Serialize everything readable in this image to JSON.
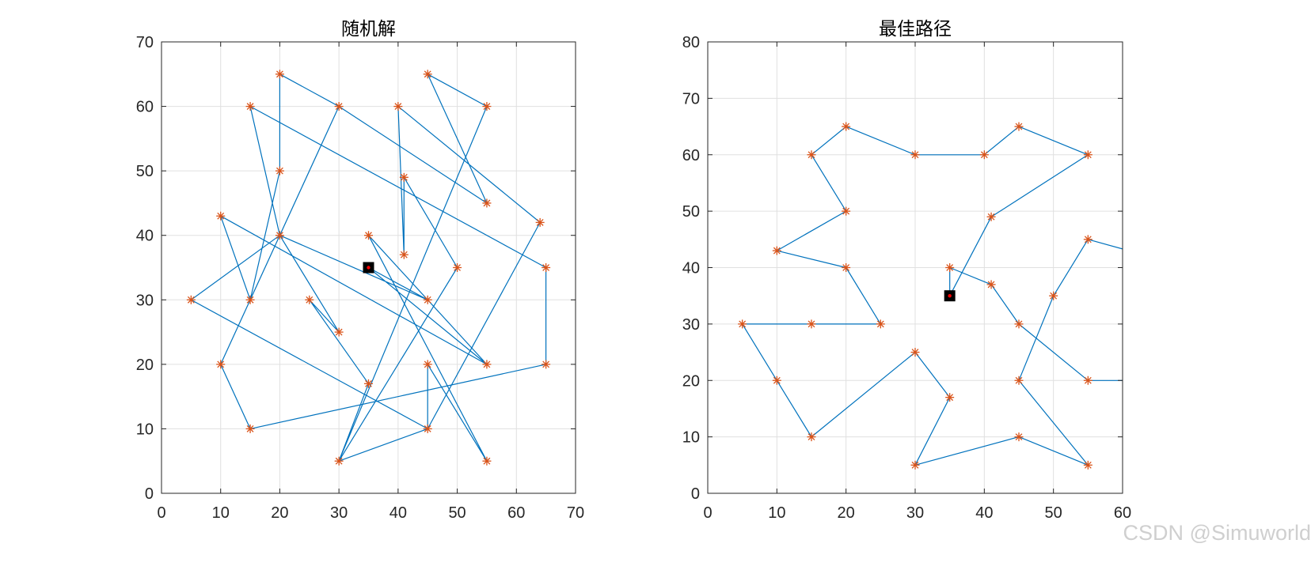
{
  "colors": {
    "route": "#0072BD",
    "city_marker": "#D95319",
    "start_marker": "#000000",
    "start_dot": "#ff0000",
    "grid": "#e0e0e0",
    "axis": "#262626"
  },
  "watermark": "CSDN @Simuworld",
  "chart_data": [
    {
      "type": "line",
      "title": "随机解",
      "xlabel": "",
      "ylabel": "",
      "xlim": [
        0,
        70
      ],
      "ylim": [
        0,
        70
      ],
      "xticks": [
        "0",
        "10",
        "20",
        "30",
        "40",
        "50",
        "60",
        "70"
      ],
      "yticks": [
        "0",
        "10",
        "20",
        "30",
        "40",
        "50",
        "60",
        "70"
      ],
      "grid": true,
      "start": [
        35,
        35
      ],
      "route": [
        [
          35,
          35
        ],
        [
          45,
          30
        ],
        [
          55,
          20
        ],
        [
          35,
          40
        ],
        [
          55,
          5
        ],
        [
          45,
          20
        ],
        [
          45,
          10
        ],
        [
          64,
          42
        ],
        [
          40,
          60
        ],
        [
          41,
          37
        ],
        [
          41,
          49
        ],
        [
          50,
          35
        ],
        [
          30,
          5
        ],
        [
          55,
          60
        ],
        [
          45,
          65
        ],
        [
          55,
          45
        ],
        [
          30,
          60
        ],
        [
          20,
          65
        ],
        [
          20,
          50
        ],
        [
          15,
          30
        ],
        [
          10,
          43
        ],
        [
          55,
          20
        ],
        [
          35,
          35
        ],
        [
          55,
          20
        ],
        [
          45,
          30
        ],
        [
          20,
          40
        ],
        [
          30,
          25
        ],
        [
          25,
          30
        ],
        [
          35,
          17
        ],
        [
          30,
          5
        ],
        [
          45,
          10
        ],
        [
          5,
          30
        ],
        [
          20,
          40
        ],
        [
          10,
          20
        ],
        [
          15,
          10
        ],
        [
          65,
          20
        ],
        [
          65,
          35
        ],
        [
          15,
          60
        ],
        [
          20,
          40
        ],
        [
          30,
          60
        ],
        [
          15,
          30
        ],
        [
          20,
          40
        ]
      ],
      "cities": [
        [
          20,
          65
        ],
        [
          45,
          65
        ],
        [
          15,
          60
        ],
        [
          30,
          60
        ],
        [
          40,
          60
        ],
        [
          55,
          60
        ],
        [
          20,
          50
        ],
        [
          41,
          49
        ],
        [
          55,
          45
        ],
        [
          10,
          43
        ],
        [
          64,
          42
        ],
        [
          20,
          40
        ],
        [
          35,
          40
        ],
        [
          41,
          37
        ],
        [
          50,
          35
        ],
        [
          65,
          35
        ],
        [
          5,
          30
        ],
        [
          15,
          30
        ],
        [
          25,
          30
        ],
        [
          45,
          30
        ],
        [
          30,
          25
        ],
        [
          10,
          20
        ],
        [
          45,
          20
        ],
        [
          55,
          20
        ],
        [
          65,
          20
        ],
        [
          35,
          17
        ],
        [
          15,
          10
        ],
        [
          45,
          10
        ],
        [
          30,
          5
        ],
        [
          55,
          5
        ]
      ]
    },
    {
      "type": "line",
      "title": "最佳路径",
      "xlabel": "",
      "ylabel": "",
      "xlim": [
        0,
        60
      ],
      "ylim": [
        0,
        80
      ],
      "xticks": [
        "0",
        "10",
        "20",
        "30",
        "40",
        "50",
        "60"
      ],
      "yticks": [
        "0",
        "10",
        "20",
        "30",
        "40",
        "50",
        "60",
        "70",
        "80"
      ],
      "grid": true,
      "start": [
        35,
        35
      ],
      "route": [
        [
          35,
          35
        ],
        [
          35,
          40
        ],
        [
          41,
          37
        ],
        [
          45,
          30
        ],
        [
          55,
          20
        ],
        [
          60,
          20
        ]
      ],
      "route_b": [
        [
          60,
          43.3
        ],
        [
          55,
          45
        ],
        [
          50,
          35
        ],
        [
          45,
          20
        ],
        [
          55,
          5
        ],
        [
          45,
          10
        ],
        [
          30,
          5
        ],
        [
          35,
          17
        ],
        [
          30,
          25
        ],
        [
          15,
          10
        ],
        [
          10,
          20
        ],
        [
          5,
          30
        ],
        [
          15,
          30
        ],
        [
          25,
          30
        ],
        [
          20,
          40
        ],
        [
          10,
          43
        ],
        [
          20,
          50
        ],
        [
          15,
          60
        ],
        [
          20,
          65
        ],
        [
          30,
          60
        ],
        [
          40,
          60
        ],
        [
          45,
          65
        ],
        [
          55,
          60
        ],
        [
          41,
          49
        ],
        [
          35,
          35
        ]
      ],
      "cities": [
        [
          20,
          65
        ],
        [
          45,
          65
        ],
        [
          15,
          60
        ],
        [
          30,
          60
        ],
        [
          40,
          60
        ],
        [
          55,
          60
        ],
        [
          20,
          50
        ],
        [
          41,
          49
        ],
        [
          55,
          45
        ],
        [
          10,
          43
        ],
        [
          20,
          40
        ],
        [
          35,
          40
        ],
        [
          41,
          37
        ],
        [
          50,
          35
        ],
        [
          5,
          30
        ],
        [
          15,
          30
        ],
        [
          25,
          30
        ],
        [
          45,
          30
        ],
        [
          30,
          25
        ],
        [
          10,
          20
        ],
        [
          45,
          20
        ],
        [
          55,
          20
        ],
        [
          35,
          17
        ],
        [
          15,
          10
        ],
        [
          45,
          10
        ],
        [
          30,
          5
        ],
        [
          55,
          5
        ]
      ]
    }
  ]
}
